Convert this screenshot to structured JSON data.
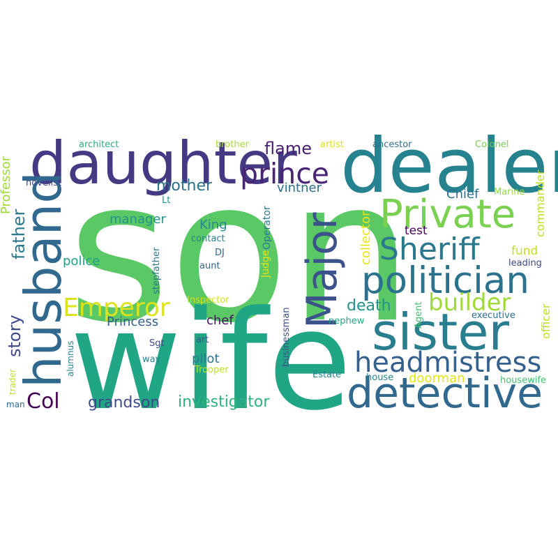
{
  "title": "",
  "palette": "viridis",
  "words": [
    {
      "text": "son",
      "color": "#5ac864"
    },
    {
      "text": "wife",
      "color": "#21a685"
    },
    {
      "text": "dealer",
      "color": "#26828e"
    },
    {
      "text": "daughter",
      "color": "#443983"
    },
    {
      "text": "husband",
      "color": "#31688e"
    },
    {
      "text": "detective",
      "color": "#31688e"
    },
    {
      "text": "sister",
      "color": "#287d8e"
    },
    {
      "text": "Private",
      "color": "#7ad151"
    },
    {
      "text": "politician",
      "color": "#2c728e"
    },
    {
      "text": "Major",
      "color": "#3b528b"
    },
    {
      "text": "headmistress",
      "color": "#355f8d"
    },
    {
      "text": "Sheriff",
      "color": "#2a788e"
    },
    {
      "text": "prince",
      "color": "#482475"
    },
    {
      "text": "Emperor",
      "color": "#dde318"
    },
    {
      "text": "builder",
      "color": "#a0da39"
    },
    {
      "text": "Col",
      "color": "#440154"
    },
    {
      "text": "investigator",
      "color": "#2db27d"
    },
    {
      "text": "grandson",
      "color": "#3e4989"
    },
    {
      "text": "story",
      "color": "#3e4989"
    },
    {
      "text": "death",
      "color": "#20928c"
    },
    {
      "text": "mother",
      "color": "#2d708e"
    },
    {
      "text": "flame",
      "color": "#481f70"
    },
    {
      "text": "father",
      "color": "#2a788e"
    },
    {
      "text": "Professor",
      "color": "#a0da39"
    },
    {
      "text": "collector",
      "color": "#e5e419"
    },
    {
      "text": "commander",
      "color": "#bddf26"
    },
    {
      "text": "officer",
      "color": "#bddf26"
    },
    {
      "text": "vintner",
      "color": "#2d708e"
    },
    {
      "text": "Chief",
      "color": "#2d708e"
    },
    {
      "text": "manager",
      "color": "#20928c"
    },
    {
      "text": "Princess",
      "color": "#355f8d"
    },
    {
      "text": "police",
      "color": "#1fa088"
    },
    {
      "text": "King",
      "color": "#23898e"
    },
    {
      "text": "pilot",
      "color": "#2a788e"
    },
    {
      "text": "chef",
      "color": "#471164"
    },
    {
      "text": "doorman",
      "color": "#e5e419"
    },
    {
      "text": "fund",
      "color": "#c2df23"
    },
    {
      "text": "test",
      "color": "#440154"
    },
    {
      "text": "Judge",
      "color": "#e5e419"
    },
    {
      "text": "Operator",
      "color": "#2a788e"
    },
    {
      "text": "stepfather",
      "color": "#2a788e"
    },
    {
      "text": "businessman",
      "color": "#3b528b"
    },
    {
      "text": "Agent",
      "color": "#44bf70"
    },
    {
      "text": "novelist",
      "color": "#3e4989"
    },
    {
      "text": "architect",
      "color": "#29af7f"
    },
    {
      "text": "brother",
      "color": "#a5db36"
    },
    {
      "text": "artist",
      "color": "#dde318"
    },
    {
      "text": "ancestor",
      "color": "#2d708e"
    },
    {
      "text": "Colonel",
      "color": "#75d054"
    },
    {
      "text": "Marine",
      "color": "#95d840"
    },
    {
      "text": "leading",
      "color": "#3e4989"
    },
    {
      "text": "executive",
      "color": "#2d708e"
    },
    {
      "text": "contact",
      "color": "#26828e"
    },
    {
      "text": "DJ",
      "color": "#31688e"
    },
    {
      "text": "aunt",
      "color": "#31688e"
    },
    {
      "text": "Lt",
      "color": "#20928c"
    },
    {
      "text": "Inspector",
      "color": "#d0e11c"
    },
    {
      "text": "nephew",
      "color": "#22a884"
    },
    {
      "text": "Sgt",
      "color": "#3e4989"
    },
    {
      "text": "art",
      "color": "#3b528b"
    },
    {
      "text": "way",
      "color": "#26828e"
    },
    {
      "text": "Trooper",
      "color": "#c2df23"
    },
    {
      "text": "Estate",
      "color": "#26828e"
    },
    {
      "text": "house",
      "color": "#26828e"
    },
    {
      "text": "housewife",
      "color": "#44bf70"
    },
    {
      "text": "alumnus",
      "color": "#26828e"
    },
    {
      "text": "trader",
      "color": "#c2df23"
    },
    {
      "text": "man",
      "color": "#31688e"
    }
  ]
}
